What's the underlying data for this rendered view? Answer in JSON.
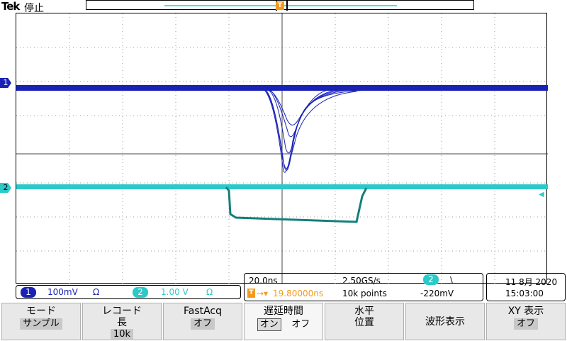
{
  "header": {
    "brand": "Tek",
    "status": "停止"
  },
  "channels": {
    "ch1": {
      "marker": "1",
      "scale": "100mV",
      "unit": "Ω",
      "color": "#1a22b5"
    },
    "ch2": {
      "marker": "2",
      "scale": "1.00 V",
      "unit": "Ω",
      "color": "#2cc9c9"
    }
  },
  "trigger": {
    "marker": "T",
    "source_badge": "2",
    "slope": "\\",
    "level": "-220mV"
  },
  "timebase": {
    "per_div": "20.0ns",
    "sample_rate": "2.50GS/s",
    "delay": "19.80000ns",
    "record_points": "10k points"
  },
  "datetime": {
    "date": "11 8月 2020",
    "time": "15:03:00"
  },
  "menu": [
    {
      "l1": "モード",
      "val": "サンプル"
    },
    {
      "l1": "レコード",
      "l2": "長",
      "val": "10k"
    },
    {
      "l1": "FastAcq",
      "val": "オフ"
    },
    {
      "l1": "遅延時間",
      "on": "オン",
      "off": "オフ"
    },
    {
      "l1": "水平",
      "l2": "位置"
    },
    {
      "l1": "波形表示"
    },
    {
      "l1": "XY 表示",
      "val": "オフ"
    }
  ]
}
